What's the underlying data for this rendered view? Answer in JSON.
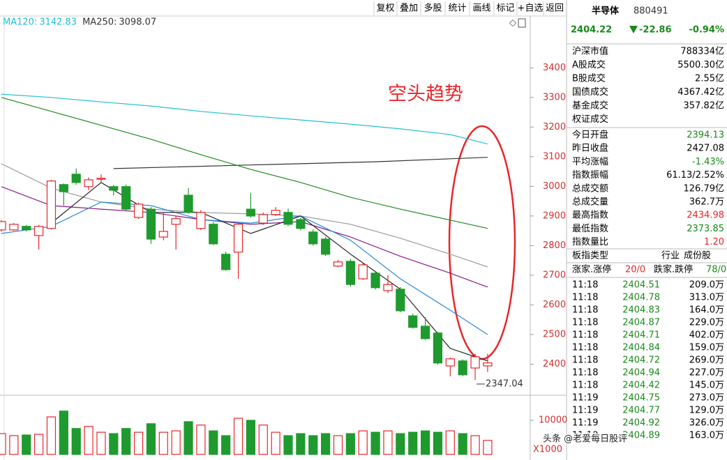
{
  "toolbar": [
    "复权",
    "叠加",
    "多股",
    "统计",
    "画线",
    "标记",
    "+自选",
    "返回"
  ],
  "chart_data": {
    "type": "candlestick",
    "up_color": "#e8262a",
    "down_color": "#1f9a2e",
    "ylim": [
      2300,
      3570
    ],
    "yticks": [
      2400,
      2500,
      2600,
      2700,
      2800,
      2900,
      3000,
      3100,
      3200,
      3300,
      3400
    ],
    "annotation": "空头趋势",
    "candles": [
      {
        "open": 2853,
        "high": 2886,
        "low": 2848,
        "close": 2881
      },
      {
        "open": 2853,
        "high": 2876,
        "low": 2850,
        "close": 2872
      },
      {
        "open": 2865,
        "high": 2870,
        "low": 2848,
        "close": 2853
      },
      {
        "open": 2834,
        "high": 2870,
        "low": 2787,
        "close": 2865
      },
      {
        "open": 2858,
        "high": 3022,
        "low": 2855,
        "close": 3018
      },
      {
        "open": 3006,
        "high": 3010,
        "low": 2935,
        "close": 2982
      },
      {
        "open": 3041,
        "high": 3060,
        "low": 3005,
        "close": 3013
      },
      {
        "open": 2999,
        "high": 3030,
        "low": 2987,
        "close": 3022
      },
      {
        "open": 3024,
        "high": 3040,
        "low": 3015,
        "close": 3027
      },
      {
        "open": 2999,
        "high": 3005,
        "low": 2970,
        "close": 2987
      },
      {
        "open": 2999,
        "high": 3006,
        "low": 2918,
        "close": 2923
      },
      {
        "open": 2895,
        "high": 2945,
        "low": 2890,
        "close": 2940
      },
      {
        "open": 2923,
        "high": 2930,
        "low": 2806,
        "close": 2822
      },
      {
        "open": 2829,
        "high": 2912,
        "low": 2818,
        "close": 2848
      },
      {
        "open": 2872,
        "high": 2900,
        "low": 2787,
        "close": 2891
      },
      {
        "open": 2970,
        "high": 2994,
        "low": 2908,
        "close": 2912
      },
      {
        "open": 2858,
        "high": 2920,
        "low": 2852,
        "close": 2912
      },
      {
        "open": 2872,
        "high": 2880,
        "low": 2802,
        "close": 2806
      },
      {
        "open": 2771,
        "high": 2780,
        "low": 2715,
        "close": 2719
      },
      {
        "open": 2778,
        "high": 2876,
        "low": 2688,
        "close": 2872
      },
      {
        "open": 2923,
        "high": 2978,
        "low": 2895,
        "close": 2900
      },
      {
        "open": 2876,
        "high": 2912,
        "low": 2870,
        "close": 2905
      },
      {
        "open": 2905,
        "high": 2930,
        "low": 2900,
        "close": 2919
      },
      {
        "open": 2912,
        "high": 2925,
        "low": 2866,
        "close": 2872
      },
      {
        "open": 2888,
        "high": 2895,
        "low": 2852,
        "close": 2858
      },
      {
        "open": 2846,
        "high": 2855,
        "low": 2800,
        "close": 2806
      },
      {
        "open": 2822,
        "high": 2830,
        "low": 2765,
        "close": 2771
      },
      {
        "open": 2731,
        "high": 2752,
        "low": 2727,
        "close": 2745
      },
      {
        "open": 2747,
        "high": 2755,
        "low": 2662,
        "close": 2669
      },
      {
        "open": 2688,
        "high": 2740,
        "low": 2684,
        "close": 2735
      },
      {
        "open": 2707,
        "high": 2715,
        "low": 2652,
        "close": 2658
      },
      {
        "open": 2648,
        "high": 2700,
        "low": 2640,
        "close": 2669
      },
      {
        "open": 2653,
        "high": 2660,
        "low": 2575,
        "close": 2580
      },
      {
        "open": 2563,
        "high": 2570,
        "low": 2520,
        "close": 2524
      },
      {
        "open": 2528,
        "high": 2559,
        "low": 2482,
        "close": 2486
      },
      {
        "open": 2505,
        "high": 2510,
        "low": 2398,
        "close": 2404
      },
      {
        "open": 2394,
        "high": 2422,
        "low": 2359,
        "close": 2418
      },
      {
        "open": 2411,
        "high": 2416,
        "low": 2360,
        "close": 2364
      },
      {
        "open": 2387,
        "high": 2434,
        "low": 2347.04,
        "close": 2425
      },
      {
        "open": 2394.13,
        "high": 2434.98,
        "low": 2373.85,
        "close": 2404.22
      }
    ],
    "series": [
      {
        "name": "MA120:",
        "color": "#22bfd3",
        "x": [
          0,
          4,
          8,
          12,
          16,
          20,
          24,
          28,
          32,
          36,
          39
        ],
        "values": [
          3311,
          3300,
          3285,
          3271,
          3253,
          3238,
          3224,
          3210,
          3194,
          3175,
          3142.83
        ]
      },
      {
        "name": "MA250:",
        "color": "#333333",
        "x": [
          9,
          20,
          30,
          36,
          39
        ],
        "values": [
          3060,
          3072,
          3083,
          3093,
          3098.07
        ]
      },
      {
        "color": "#1e8a1e",
        "x": [
          0,
          4,
          8,
          12,
          16,
          20,
          24,
          28,
          32,
          36,
          39
        ],
        "values": [
          3300,
          3253,
          3206,
          3159,
          3107,
          3057,
          3013,
          2963,
          2923,
          2886,
          2858
        ]
      },
      {
        "color": "#9a9a9a",
        "x": [
          0,
          4,
          8,
          12,
          16,
          20,
          24,
          28,
          32,
          36,
          39
        ],
        "values": [
          3076,
          2994,
          2947,
          2923,
          2912,
          2907,
          2900,
          2872,
          2825,
          2771,
          2728
        ]
      },
      {
        "color": "#8a1a8a",
        "x": [
          0,
          4,
          8,
          12,
          16,
          20,
          24,
          28,
          32,
          36,
          39
        ],
        "values": [
          2999,
          2935,
          2923,
          2912,
          2888,
          2872,
          2881,
          2829,
          2764,
          2707,
          2660
        ]
      },
      {
        "color": "#2a8ad8",
        "x": [
          0,
          4,
          8,
          12,
          16,
          20,
          24,
          28,
          32,
          36,
          39
        ],
        "values": [
          2841,
          2865,
          2947,
          2935,
          2888,
          2876,
          2900,
          2818,
          2688,
          2582,
          2500
        ]
      },
      {
        "color": "#222222",
        "x": [
          4,
          8,
          12,
          16,
          20,
          24,
          28,
          32,
          36,
          39
        ],
        "values": [
          2876,
          3013,
          2912,
          2912,
          2841,
          2900,
          2771,
          2653,
          2453,
          2411
        ]
      }
    ],
    "volume": {
      "ylim": [
        0,
        17350
      ],
      "yticks": [
        10000
      ],
      "unit": "X1000",
      "values": [
        6100,
        5500,
        5700,
        5900,
        11000,
        12700,
        7600,
        8200,
        6500,
        6100,
        7600,
        6500,
        9000,
        6500,
        6900,
        9600,
        8600,
        6900,
        5500,
        10600,
        10000,
        8600,
        6500,
        5500,
        6100,
        5500,
        6100,
        5500,
        6100,
        6900,
        6500,
        6900,
        6100,
        6500,
        6900,
        6500,
        6900,
        6100,
        5500,
        4100
      ]
    }
  },
  "panel": {
    "name": "半导体",
    "code": "880491",
    "price": "2404.22",
    "change": "-22.86",
    "change_pct": "-0.94%",
    "market": [
      {
        "label": "沪深市值",
        "value": "788334亿"
      },
      {
        "label": "A股成交",
        "value": "5500.30亿"
      },
      {
        "label": "B股成交",
        "value": "2.55亿"
      },
      {
        "label": "国债成交",
        "value": "4367.42亿"
      },
      {
        "label": "基金成交",
        "value": "357.82亿"
      },
      {
        "label": "权证成交"
      }
    ],
    "index": [
      {
        "label": "今日开盘",
        "value": "2394.13",
        "color": "#1a8a1a"
      },
      {
        "label": "昨日收盘",
        "value": "2427.08",
        "color": "#000000"
      },
      {
        "label": "平均涨幅",
        "value": "-1.43%",
        "color": "#1a8a1a"
      },
      {
        "label": "指数振幅",
        "value": "61.13/2.52%",
        "color": "#000000"
      },
      {
        "label": "总成交额",
        "value": "126.79亿",
        "color": "#000000"
      },
      {
        "label": "总成交量",
        "value": "362.7万",
        "color": "#000000"
      },
      {
        "label": "最高指数",
        "value": "2434.98",
        "color": "#e8262a"
      },
      {
        "label": "最低指数",
        "value": "2373.85",
        "color": "#1a8a1a"
      },
      {
        "label": "指数量比",
        "value": "1.20",
        "color": "#e8262a"
      }
    ],
    "tab_title": "板指类型",
    "tabs": [
      "行业",
      "成份股"
    ],
    "breadth": {
      "up_label": "涨家.涨停",
      "up": "20/0",
      "down_label": "跌家.跌停",
      "down": "78/0"
    },
    "ticks": [
      [
        "11:18",
        "2404.51",
        "209.0万"
      ],
      [
        "11:18",
        "2404.78",
        "313.0万"
      ],
      [
        "11:18",
        "2404.83",
        "164.0万"
      ],
      [
        "11:18",
        "2404.87",
        "229.0万"
      ],
      [
        "11:18",
        "2404.71",
        "402.0万"
      ],
      [
        "11:18",
        "2404.84",
        "159.0万"
      ],
      [
        "11:18",
        "2404.72",
        "269.0万"
      ],
      [
        "11:18",
        "2404.94",
        "227.0万"
      ],
      [
        "11:18",
        "2404.42",
        "145.0万"
      ],
      [
        "11:19",
        "2404.75",
        "273.0万"
      ],
      [
        "11:19",
        "2404.77",
        "129.0万"
      ],
      [
        "11:19",
        "2404.92",
        "326.0万"
      ],
      [
        "11:19",
        "2404.89",
        "163.0万"
      ]
    ]
  },
  "watermark": "头条 @老爱每日股评"
}
